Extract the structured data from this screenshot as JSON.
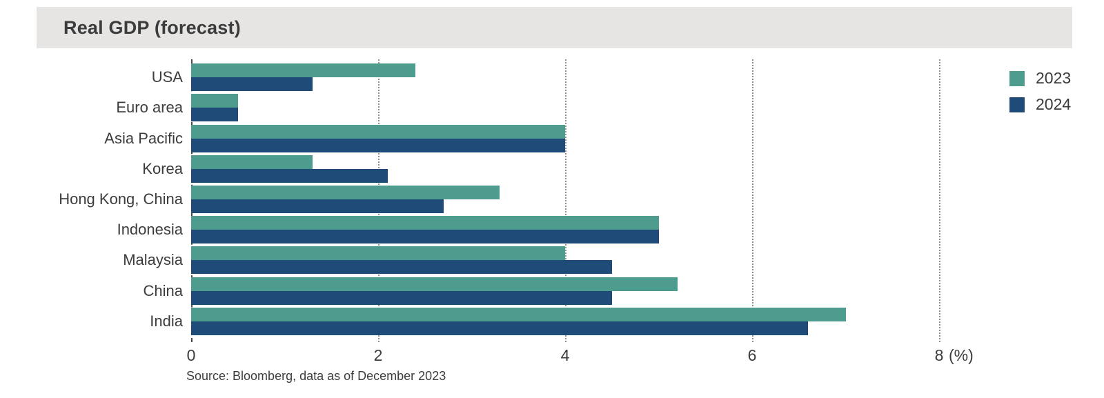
{
  "title_bar": {
    "title": "Real GDP (forecast)"
  },
  "source": "Source: Bloomberg, data as of December 2023",
  "colors": {
    "series_2023": "#4E9C8D",
    "series_2024": "#1E4B78",
    "title_bar_bg": "#E6E5E3",
    "text": "#3C3C3C",
    "gridline": "#8F8F8F"
  },
  "chart_data": {
    "type": "bar",
    "orientation": "horizontal",
    "title": "Real GDP (forecast)",
    "categories": [
      "USA",
      "Euro area",
      "Asia Pacific",
      "Korea",
      "Hong Kong, China",
      "Indonesia",
      "Malaysia",
      "China",
      "India"
    ],
    "series": [
      {
        "name": "2023",
        "color": "#4E9C8D",
        "values": [
          2.4,
          0.5,
          4.0,
          1.3,
          3.3,
          5.0,
          4.0,
          5.2,
          7.0
        ]
      },
      {
        "name": "2024",
        "color": "#1E4B78",
        "values": [
          1.3,
          0.5,
          4.0,
          2.1,
          2.7,
          5.0,
          4.5,
          4.5,
          6.6
        ]
      }
    ],
    "xlabel": "(%)",
    "xlim": [
      0,
      8
    ],
    "xticks": [
      0,
      2,
      4,
      6,
      8
    ],
    "grid": "dotted-vertical-at-ticks",
    "zero_line": "dashed-vertical",
    "legend_position": "top-right"
  }
}
